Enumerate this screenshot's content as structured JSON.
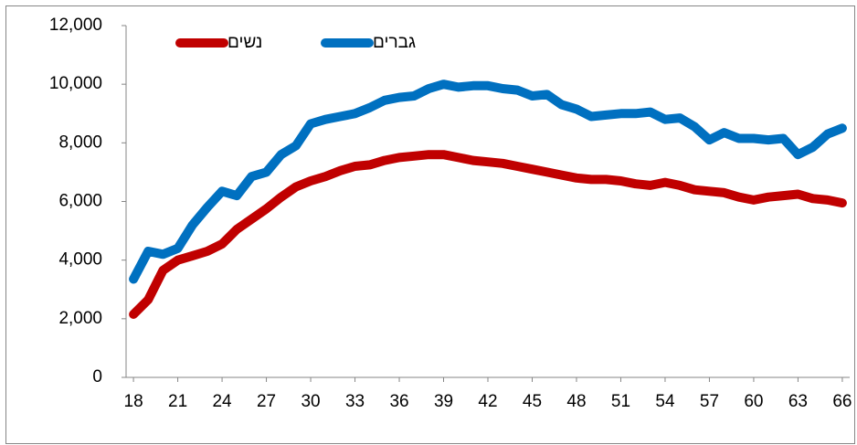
{
  "chart_data": {
    "type": "line",
    "x": [
      18,
      19,
      20,
      21,
      22,
      23,
      24,
      25,
      26,
      27,
      28,
      29,
      30,
      31,
      32,
      33,
      34,
      35,
      36,
      37,
      38,
      39,
      40,
      41,
      42,
      43,
      44,
      45,
      46,
      47,
      48,
      49,
      50,
      51,
      52,
      53,
      54,
      55,
      56,
      57,
      58,
      59,
      60,
      61,
      62,
      63,
      64,
      65,
      66
    ],
    "series": [
      {
        "name": "נשים",
        "color": "#c00000",
        "values": [
          2150,
          2650,
          3650,
          4000,
          4150,
          4300,
          4550,
          5050,
          5400,
          5750,
          6150,
          6500,
          6700,
          6850,
          7050,
          7200,
          7250,
          7400,
          7500,
          7550,
          7600,
          7600,
          7500,
          7400,
          7350,
          7300,
          7200,
          7100,
          7000,
          6900,
          6800,
          6750,
          6750,
          6700,
          6600,
          6550,
          6650,
          6550,
          6400,
          6350,
          6300,
          6150,
          6050,
          6150,
          6200,
          6250,
          6100,
          6050,
          5950
        ]
      },
      {
        "name": "גברים",
        "color": "#0070c0",
        "values": [
          3350,
          4300,
          4200,
          4400,
          5200,
          5800,
          6350,
          6200,
          6850,
          7000,
          7600,
          7900,
          8650,
          8800,
          8900,
          9000,
          9200,
          9450,
          9550,
          9600,
          9850,
          10000,
          9900,
          9950,
          9950,
          9850,
          9800,
          9600,
          9650,
          9300,
          9150,
          8900,
          8950,
          9000,
          9000,
          9050,
          8800,
          8850,
          8550,
          8100,
          8350,
          8150,
          8150,
          8100,
          8150,
          7600,
          7850,
          8300,
          8500
        ]
      }
    ],
    "xlim": [
      17.5,
      66.5
    ],
    "xticks": [
      18,
      21,
      24,
      27,
      30,
      33,
      36,
      39,
      42,
      45,
      48,
      51,
      54,
      57,
      60,
      63,
      66
    ],
    "ylim": [
      0,
      12000
    ],
    "yticks": [
      0,
      {
        "value": 2000,
        "label": "2,000"
      },
      {
        "value": 4000,
        "label": "4,000"
      },
      {
        "value": 6000,
        "label": "6,000"
      },
      {
        "value": 8000,
        "label": "8,000"
      },
      {
        "value": 10000,
        "label": "10,000"
      },
      {
        "value": 12000,
        "label": "12,000"
      }
    ]
  }
}
